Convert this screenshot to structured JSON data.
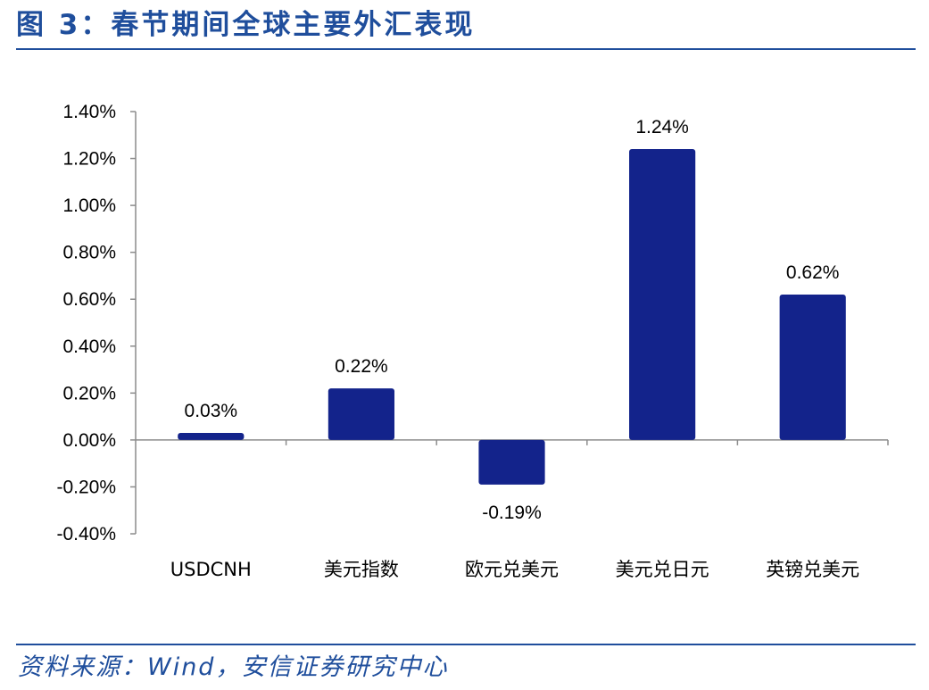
{
  "figure": {
    "title": "图 3：春节期间全球主要外汇表现",
    "source": "资料来源：Wind，安信证券研究中心"
  },
  "colors": {
    "bar": "#13238b",
    "title": "#1f4e9c",
    "axis": "#8c8c8c"
  },
  "chart_data": {
    "type": "bar",
    "categories": [
      "USDCNH",
      "美元指数",
      "欧元兑美元",
      "美元兑日元",
      "英镑兑美元"
    ],
    "values": [
      0.03,
      0.22,
      -0.19,
      1.24,
      0.62
    ],
    "data_labels": [
      "0.03%",
      "0.22%",
      "-0.19%",
      "1.24%",
      "0.62%"
    ],
    "ylim": [
      -0.4,
      1.4
    ],
    "yticks": [
      1.4,
      1.2,
      1.0,
      0.8,
      0.6,
      0.4,
      0.2,
      0.0,
      -0.2,
      -0.4
    ],
    "ytick_labels": [
      "1.40%",
      "1.20%",
      "1.00%",
      "0.80%",
      "0.60%",
      "0.40%",
      "0.20%",
      "0.00%",
      "-0.20%",
      "-0.40%"
    ],
    "grid": false,
    "legend": "none"
  }
}
